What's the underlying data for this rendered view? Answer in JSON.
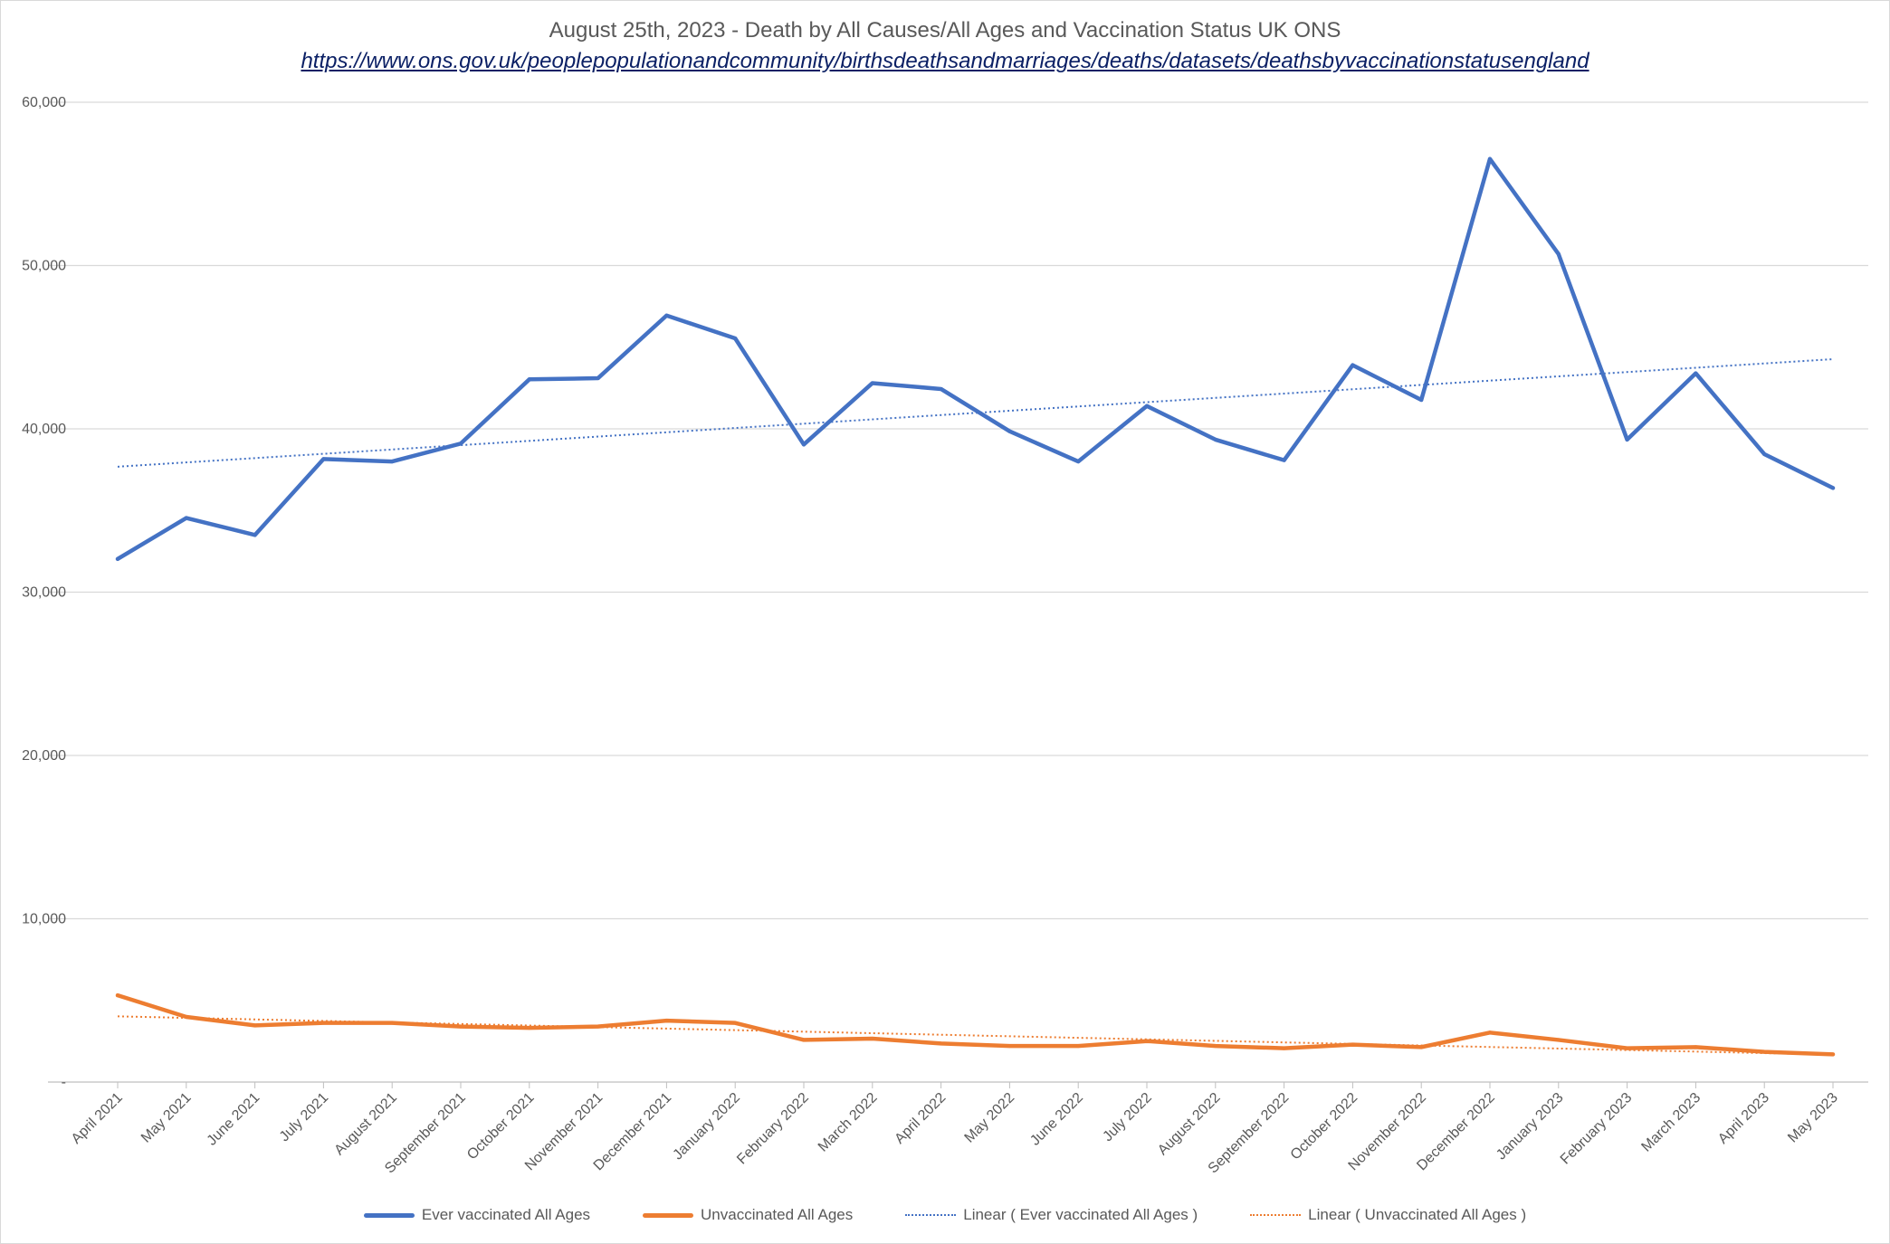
{
  "chart_data": {
    "type": "line",
    "title": "August 25th, 2023 - Death by All Causes/All Ages and Vaccination Status UK ONS",
    "subtitle_link": "https://www.ons.gov.uk/peoplepopulationandcommunity/birthsdeathsandmarriages/deaths/datasets/deathsbyvaccinationstatusengland",
    "categories": [
      "April 2021",
      "May 2021",
      "June 2021",
      "July 2021",
      "August 2021",
      "September 2021",
      "October 2021",
      "November 2021",
      "December 2021",
      "January 2022",
      "February 2022",
      "March 2022",
      "April 2022",
      "May 2022",
      "June 2022",
      "July 2022",
      "August 2022",
      "September 2022",
      "October 2022",
      "November 2022",
      "December 2022",
      "January 2023",
      "February 2023",
      "March 2023",
      "April 2023",
      "May 2023"
    ],
    "series": [
      {
        "name": "Ever vaccinated All Ages",
        "color": "#4472c4",
        "values": [
          32030,
          34540,
          33500,
          38150,
          38000,
          39100,
          43030,
          43100,
          46940,
          45540,
          39040,
          42800,
          42440,
          39850,
          38000,
          41400,
          39340,
          38080,
          43900,
          41770,
          56530,
          50700,
          39340,
          43400,
          38450,
          36380
        ]
      },
      {
        "name": "Unvaccinated All Ages",
        "color": "#ed7d31",
        "values": [
          5310,
          3990,
          3470,
          3620,
          3620,
          3400,
          3320,
          3400,
          3760,
          3620,
          2580,
          2660,
          2360,
          2210,
          2210,
          2510,
          2210,
          2070,
          2290,
          2140,
          3030,
          2580,
          2070,
          2140,
          1850,
          1700
        ]
      }
    ],
    "trendlines": [
      {
        "name": "Linear ( Ever vaccinated All Ages )",
        "of": 0,
        "color": "#4472c4"
      },
      {
        "name": "Linear ( Unvaccinated All Ages )",
        "of": 1,
        "color": "#ed7d31"
      }
    ],
    "ylim": [
      0,
      60000
    ],
    "yticks": [
      "-",
      "10,000",
      "20,000",
      "30,000",
      "40,000",
      "50,000",
      "60,000"
    ],
    "grid": true,
    "legend": "bottom",
    "xlabel": "",
    "ylabel": ""
  }
}
